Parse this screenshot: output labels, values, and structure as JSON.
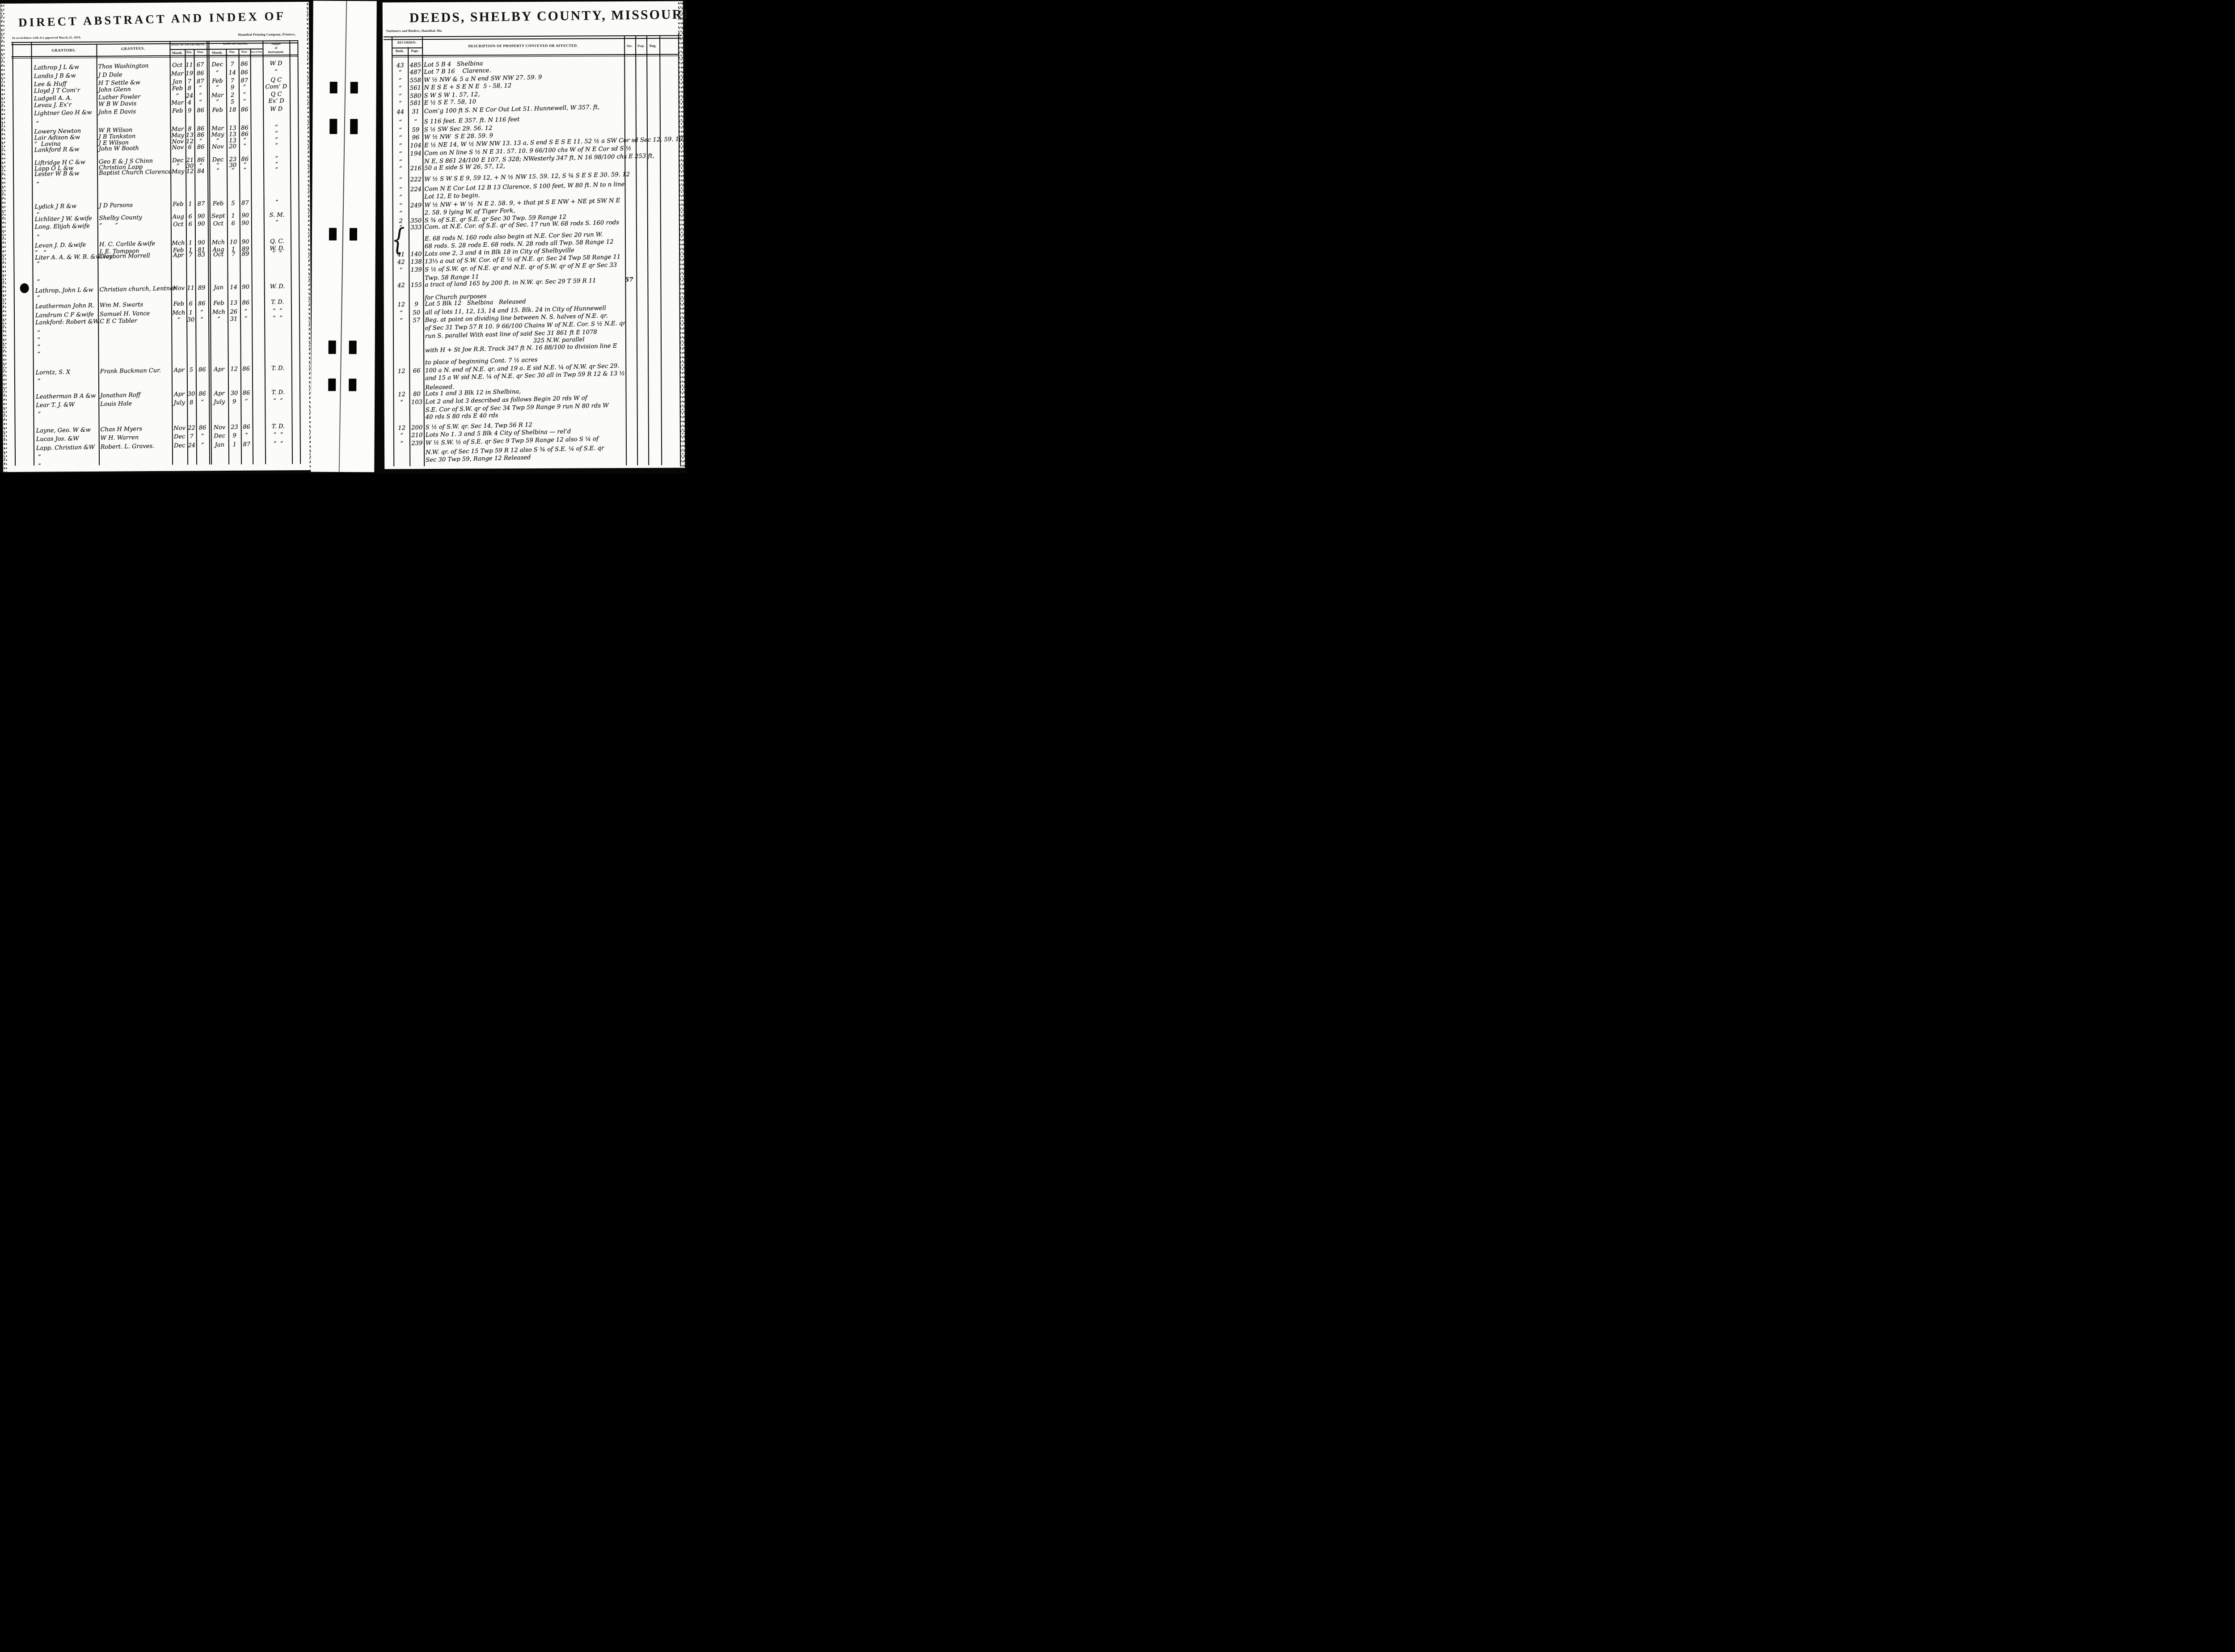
{
  "colors": {
    "paper": "#fbfbf7",
    "ink": "#141414",
    "background": "#070705"
  },
  "left_page": {
    "title": "DIRECT ABSTRACT AND INDEX OF",
    "act_note": "In accordance with Act approved March 25, 1870.",
    "printer_note": "Hannibal Printing Company, Printers,",
    "columns": {
      "grantors": "GRANTORS.",
      "grantees": "GRANTEES.",
      "date_of_instrument": "DATE OF INSTRUMENT.",
      "date_of_filing": "DATE OF FILING.",
      "month": "Month.",
      "day": "Day.",
      "year": "Year.",
      "time_of_day": "Time of Day.",
      "nature_line1": "Nature",
      "nature_line2": "of",
      "nature_line3": "Instrument."
    },
    "ditto_mark": "”",
    "rows": [
      {
        "grantor": "Lathrop J L &w",
        "grantee": "Thos Washington",
        "inst_month": "Oct",
        "inst_day": "11",
        "inst_year": "67",
        "file_month": "Dec",
        "file_day": "7",
        "file_year": "86",
        "time_of_day": "",
        "nature": "W D"
      },
      {
        "grantor": "Landis J B &w",
        "grantee": "J D Dale",
        "inst_month": "Mar",
        "inst_day": "19",
        "inst_year": "86",
        "file_month": "”",
        "file_day": "14",
        "file_year": "86",
        "time_of_day": "",
        "nature": "”"
      },
      {
        "grantor": "Lee & Huff",
        "grantee": "H T Settle &w",
        "inst_month": "Jan",
        "inst_day": "7",
        "inst_year": "87",
        "file_month": "Feb",
        "file_day": "7",
        "file_year": "87",
        "time_of_day": "",
        "nature": "Q C"
      },
      {
        "grantor": "Lloyd J T Com’r",
        "grantee": "John Glenn",
        "inst_month": "Feb",
        "inst_day": "8",
        "inst_year": "”",
        "file_month": "”",
        "file_day": "9",
        "file_year": "”",
        "time_of_day": "",
        "nature": "Com’ D"
      },
      {
        "grantor": "Ludgell A. A.",
        "grantee": "Luther Fowler",
        "inst_month": "”",
        "inst_day": "24",
        "inst_year": "”",
        "file_month": "Mar",
        "file_day": "2",
        "file_year": "”",
        "time_of_day": "",
        "nature": "Q C"
      },
      {
        "grantor": "Levau J. Ex’r",
        "grantee": "W B W Davis",
        "inst_month": "Mar",
        "inst_day": "4",
        "inst_year": "”",
        "file_month": "”",
        "file_day": "5",
        "file_year": "”",
        "time_of_day": "",
        "nature": "Ex’ D"
      },
      {
        "grantor": "Lightner Geo H &w",
        "grantee": "John E Davis",
        "inst_month": "Feb",
        "inst_day": "9",
        "inst_year": "86",
        "file_month": "Feb",
        "file_day": "18",
        "file_year": "86",
        "time_of_day": "",
        "nature": "W D"
      },
      {
        "grantor": "Lowery Newton",
        "grantee": "W R Wilson",
        "inst_month": "Mar",
        "inst_day": "8",
        "inst_year": "86",
        "file_month": "Mar",
        "file_day": "13",
        "file_year": "86",
        "time_of_day": "",
        "nature": "”"
      },
      {
        "grantor": "Lair Adison &w",
        "grantee": "J B Tankston",
        "inst_month": "May",
        "inst_day": "13",
        "inst_year": "86",
        "file_month": "May",
        "file_day": "13",
        "file_year": "86",
        "time_of_day": "",
        "nature": "”"
      },
      {
        "grantor": "”  Lovina",
        "grantee": "J E Wilson",
        "inst_month": "Nov",
        "inst_day": "12",
        "inst_year": "”",
        "file_month": "”",
        "file_day": "13",
        "file_year": "”",
        "time_of_day": "",
        "nature": "”"
      },
      {
        "grantor": "Lankford R &w",
        "grantee": "John W Booth",
        "inst_month": "Nov",
        "inst_day": "6",
        "inst_year": "86",
        "file_month": "Nov",
        "file_day": "20",
        "file_year": "”",
        "time_of_day": "",
        "nature": "”"
      },
      {
        "grantor": "Liftridge H C &w",
        "grantee": "Geo E & J S Chinn",
        "inst_month": "Dec",
        "inst_day": "21",
        "inst_year": "86",
        "file_month": "Dec",
        "file_day": "23",
        "file_year": "86",
        "time_of_day": "",
        "nature": "”"
      },
      {
        "grantor": "Lapp O L &w",
        "grantee": "Christian Lapp",
        "inst_month": "”",
        "inst_day": "30",
        "inst_year": "”",
        "file_month": "”",
        "file_day": "30",
        "file_year": "”",
        "time_of_day": "",
        "nature": "”"
      },
      {
        "grantor": "Lester W B &w",
        "grantee": "Baptist Church Clarence",
        "inst_month": "May",
        "inst_day": "12",
        "inst_year": "84",
        "file_month": "”",
        "file_day": "”",
        "file_year": "”",
        "time_of_day": "",
        "nature": "”"
      },
      {
        "grantor": "Lydick J R &w",
        "grantee": "J D Parsons",
        "inst_month": "Feb",
        "inst_day": "1",
        "inst_year": "87",
        "file_month": "Feb",
        "file_day": "5",
        "file_year": "87",
        "time_of_day": "",
        "nature": "”"
      },
      {
        "grantor": "Lichliter J W. &wife",
        "grantee": "Shelby County",
        "inst_month": "Aug",
        "inst_day": "6",
        "inst_year": "90",
        "file_month": "Sept",
        "file_day": "1",
        "file_year": "90",
        "time_of_day": "",
        "nature": "S. M."
      },
      {
        "grantor": "Long. Elijah &wife",
        "grantee": "”       ”",
        "inst_month": "Oct",
        "inst_day": "6",
        "inst_year": "90",
        "file_month": "Oct",
        "file_day": "6",
        "file_year": "90",
        "time_of_day": "",
        "nature": "”"
      },
      {
        "grantor": "Levan J. D. &wife",
        "grantee": "H. C. Carlile &wife",
        "inst_month": "Mch",
        "inst_day": "1",
        "inst_year": "90",
        "file_month": "Mch",
        "file_day": "10",
        "file_year": "90",
        "time_of_day": "",
        "nature": "Q. C."
      },
      {
        "grantor": "”   ”",
        "grantee": "J. E. Tompson",
        "inst_month": "Feb",
        "inst_day": "1",
        "inst_year": "81",
        "file_month": "Aug",
        "file_day": "1",
        "file_year": "89",
        "time_of_day": "",
        "nature": "W. D."
      },
      {
        "grantor": "Liter A. A. & W. B. &wives",
        "grantee": "Clayborn Morrell",
        "inst_month": "Apr",
        "inst_day": "7",
        "inst_year": "83",
        "file_month": "Oct",
        "file_day": "7",
        "file_year": "89",
        "time_of_day": "",
        "nature": "”  ”"
      },
      {
        "grantor": "Lathrop, John L &w",
        "grantee": "Christian church, Lentner",
        "inst_month": "Nov",
        "inst_day": "11",
        "inst_year": "89",
        "file_month": "Jan",
        "file_day": "14",
        "file_year": "90",
        "time_of_day": "",
        "nature": "W. D."
      },
      {
        "grantor": "Leatherman John R.",
        "grantee": "Wm M. Swarts",
        "inst_month": "Feb",
        "inst_day": "6",
        "inst_year": "86",
        "file_month": "Feb",
        "file_day": "13",
        "file_year": "86",
        "time_of_day": "",
        "nature": "T. D."
      },
      {
        "grantor": "Landrum C F &wife",
        "grantee": "Samuel H. Vance",
        "inst_month": "Mch",
        "inst_day": "1",
        "inst_year": "”",
        "file_month": "Mch",
        "file_day": "26",
        "file_year": "”",
        "time_of_day": "",
        "nature": "”  ”"
      },
      {
        "grantor": "Lankford: Robert &W.",
        "grantee": "C E C Tabler",
        "inst_month": "”",
        "inst_day": "30",
        "inst_year": "”",
        "file_month": "”",
        "file_day": "31",
        "file_year": "”",
        "time_of_day": "",
        "nature": "”  ”"
      },
      {
        "grantor": "Lorntz, S. X",
        "grantee": "Frank Buckman Cur.",
        "inst_month": "Apr",
        "inst_day": "5",
        "inst_year": "86",
        "file_month": "Apr",
        "file_day": "12",
        "file_year": "86",
        "time_of_day": "",
        "nature": "T. D."
      },
      {
        "grantor": "Leatherman B A &w",
        "grantee": "Jonathan Roff",
        "inst_month": "Apr",
        "inst_day": "30",
        "inst_year": "86",
        "file_month": "Apr",
        "file_day": "30",
        "file_year": "86",
        "time_of_day": "",
        "nature": "T. D."
      },
      {
        "grantor": "Lear T. J. &W",
        "grantee": "Louis Hale",
        "inst_month": "July",
        "inst_day": "8",
        "inst_year": "”",
        "file_month": "July",
        "file_day": "9",
        "file_year": "”",
        "time_of_day": "",
        "nature": "”  ”"
      },
      {
        "grantor": "Layne, Geo. W &w",
        "grantee": "Chas H Myers",
        "inst_month": "Nov",
        "inst_day": "22",
        "inst_year": "86",
        "file_month": "Nov",
        "file_day": "23",
        "file_year": "86",
        "time_of_day": "",
        "nature": "T. D."
      },
      {
        "grantor": "Lucas Jos. &W",
        "grantee": "W H. Warren",
        "inst_month": "Dec",
        "inst_day": "7",
        "inst_year": "”",
        "file_month": "Dec",
        "file_day": "9",
        "file_year": "”",
        "time_of_day": "",
        "nature": "”  ”"
      },
      {
        "grantor": "Lapp. Christian &W",
        "grantee": "Robert. L. Graves.",
        "inst_month": "Dec",
        "inst_day": "24",
        "inst_year": "”",
        "file_month": "Jan",
        "file_day": "1",
        "file_year": "87",
        "time_of_day": "",
        "nature": "”  ”"
      }
    ]
  },
  "right_page": {
    "title": "DEEDS, SHELBY COUNTY, MISSOURI.",
    "stationers_note": "Stationers and Binders, Hannibal, Mo.",
    "columns": {
      "recorded": "RECORDED.",
      "book": "Book.",
      "page": "Page.",
      "description": "DESCRIPTION OF PROPERTY CONVEYED OR AFFECTED.",
      "sec": "Sec.",
      "twp": "Twp.",
      "rng": "Rng."
    },
    "brace_mark": "{",
    "rows": [
      {
        "book": "43",
        "page": "485",
        "description": "Lot 5 B 4   Shelbina"
      },
      {
        "book": "”",
        "page": "487",
        "description": "Lot 7 B 16    Clarence."
      },
      {
        "book": "”",
        "page": "558",
        "description": "W ½ NW & 5 a N end SW NW 27. 59. 9"
      },
      {
        "book": "”",
        "page": "561",
        "description": "N E S E + S E N E  5 - 58, 12"
      },
      {
        "book": "”",
        "page": "580",
        "description": "S W S W 1. 57, 12,"
      },
      {
        "book": "”",
        "page": "581",
        "description": "E ½ S E 7. 58, 10"
      },
      {
        "book": "44",
        "page": "31",
        "description": "Com’g 100 ft S. N E Cor Out Lot 51. Hunnewell, W 357. ft,"
      },
      {
        "book": "”",
        "page": "”",
        "description": "S 116 feet. E 357. ft. N 116 feet"
      },
      {
        "book": "”",
        "page": "59",
        "description": "S ½ SW Sec 29. 56. 12"
      },
      {
        "book": "”",
        "page": "96",
        "description": "W ½ NW  S E 28. 59. 9"
      },
      {
        "book": "”",
        "page": "104",
        "description": "E ½ NE 14, W ½ NW NW 13. 13 a, S end S E S E 11. 52 ½ a SW Cor sd Sec 12. 59. 10"
      },
      {
        "book": "”",
        "page": "194",
        "description": "Com on N line S ½ N E 31. 57. 10. 9 66/100 chs W of N E Cor sd S ½"
      },
      {
        "book": "”",
        "page": "",
        "description": "N E, S 861 24/100 E 107, S 328; NWesterly 347 ft, N 16 98/100 chs E 253 ft,"
      },
      {
        "book": "”",
        "page": "216",
        "description": "50 a E side S W 26, 57, 12,"
      },
      {
        "book": "”",
        "page": "222",
        "description": "W ½ S W S E 9, 59 12, + N ½ NW 15. 59. 12, S ¾ S E S E 30. 59. 12"
      },
      {
        "book": "”",
        "page": "224",
        "description": "Com N E Cor Lot 12 B 13 Clarence, S 100 feet, W 80 ft. N to n line"
      },
      {
        "book": "”",
        "page": "",
        "description": "Lot 12, E to begin."
      },
      {
        "book": "”",
        "page": "249",
        "description": "W ½ NW + W ½  N E 2. 58. 9, + that pt S E NW + NE pt SW N E"
      },
      {
        "book": "”",
        "page": "",
        "description": "2. 58. 9 lying W. of Tiger Fork,"
      },
      {
        "book": "2",
        "page": "350",
        "description": "S ¾ of S.E. qr S.E. qr Sec 30 Twp. 59 Range 12"
      },
      {
        "book": "”",
        "page": "333",
        "description": "Com. at N.E. Cor. of S.E. qr of Sec. 17 run W. 68 rods S. 160 rods"
      },
      {
        "book": "",
        "page": "",
        "description": "E. 68 rods N. 160 rods also begin at N.E. Cor Sec 20 run W."
      },
      {
        "book": "",
        "page": "",
        "description": "68 rods. S. 28 rods E. 68 rods. N. 28 rods all Twp. 58 Range 12"
      },
      {
        "book": "41",
        "page": "140",
        "description": "Lots one 2, 3 and 4 in Blk 18 in City of Shelbyville"
      },
      {
        "book": "42",
        "page": "138",
        "description": "13⅓ a out of S.W. Cor. of E ½ of N.E. qr. Sec 24 Twp 58 Range 11"
      },
      {
        "book": "”",
        "page": "139",
        "description": "S ½ of S.W. qr. of N.E. qr and N.E. qr of S.W. qr of N E qr Sec 33"
      },
      {
        "book": "",
        "page": "",
        "description": "Twp. 58 Range 11"
      },
      {
        "book": "42",
        "page": "155",
        "description": "a tract of land 165 by 200 ft. in N.W. qr. Sec 29 T 59 R 11",
        "sec": "57"
      },
      {
        "book": "",
        "page": "",
        "description": "for Church purposes"
      },
      {
        "book": "12",
        "page": "9",
        "description": "Lot 5 Blk 12   Shelbina   Released"
      },
      {
        "book": "”",
        "page": "50",
        "description": "all of lots 11, 12, 13, 14 and 15. Blk. 24 in City of Hunnewell"
      },
      {
        "book": "”",
        "page": "57",
        "description": "Beg. at point on dividing line between N. S. halves of N.E. qr."
      },
      {
        "book": "",
        "page": "",
        "description": "of Sec 31 Twp 57 R 10. 9 66/100 Chains W of N.E. Cor. S ½ N.E. qr"
      },
      {
        "book": "",
        "page": "",
        "description": "run S. parallel With east line of said Sec 31 861 ft E 1078"
      },
      {
        "book": "",
        "page": "",
        "description": "325 N.W. parallel",
        "indent": 242
      },
      {
        "book": "",
        "page": "",
        "description": "with H + St Joe R.R. Track 347 ft N. 16 88/100 to division line E"
      },
      {
        "book": "",
        "page": "",
        "description": "to place of beginning Cont. 7 ½ acres"
      },
      {
        "book": "12",
        "page": "66",
        "description": "100 a N. end of N.E. qr. and 19 a. E sid N.E. ¼ of N.W. qr Sec 29."
      },
      {
        "book": "",
        "page": "",
        "description": "and 15 a W sid N.E. ¼ of N.E. qr Sec 30 all in Twp 59 R 12 & 13 ½"
      },
      {
        "book": "",
        "page": "",
        "description": "Released."
      },
      {
        "book": "12",
        "page": "80",
        "description": "Lots 1 and 3 Blk 12 in Shelbina,"
      },
      {
        "book": "”",
        "page": "103",
        "description": "Lot 2 and lot 3 described as follows Begin 20 rds W of"
      },
      {
        "book": "",
        "page": "",
        "description": "S.E. Cor of S.W. qr of Sec 34 Twp 59 Range 9 run N 80 rds W"
      },
      {
        "book": "",
        "page": "",
        "description": "40 rds S 80 rds E 40 rds"
      },
      {
        "book": "12",
        "page": "200",
        "description": "S ½ of S.W. qr. Sec 14, Twp 56 R 12"
      },
      {
        "book": "”",
        "page": "210",
        "description": "Lots No 1. 3 and 5 Blk 4 City of Shelbina — rel’d"
      },
      {
        "book": "”",
        "page": "239",
        "description": "W ½ S.W. ½ of S.E. qr Sec 9 Twp 59 Range 12 also S ¼ of"
      },
      {
        "book": "",
        "page": "",
        "description": "N.W. qr. of Sec 15 Twp 59 R 12 also S ¾ of S.E. ¼ of S.E. qr"
      },
      {
        "book": "",
        "page": "",
        "description": "Sec 30 Twp 59, Range 12 Released"
      }
    ]
  }
}
